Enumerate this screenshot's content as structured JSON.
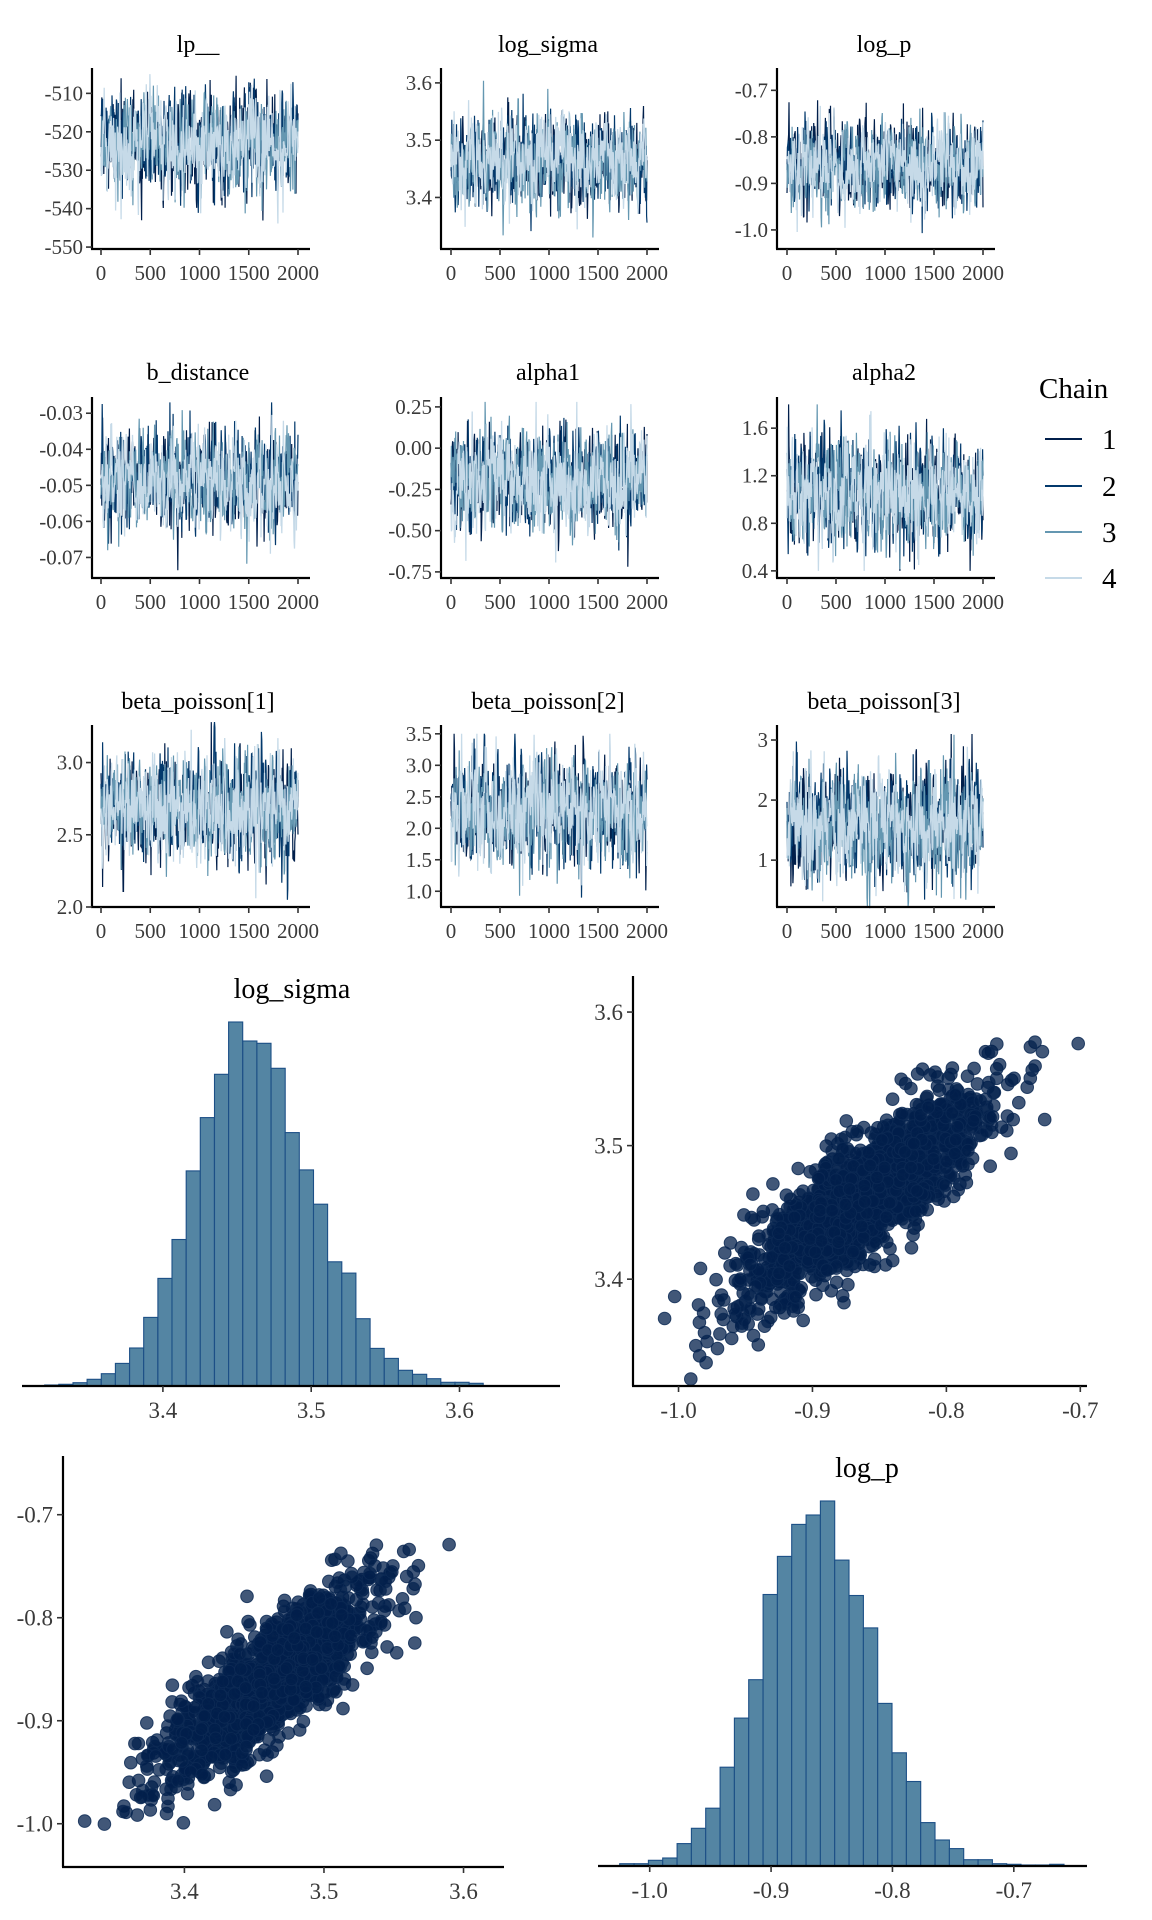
{
  "colors": {
    "chain_1": "#011f4b",
    "chain_2": "#03396c",
    "chain_3": "#6497b1",
    "chain_4": "#c6dae8",
    "hist_fill": "#5485a3",
    "hist_edge": "#1c4f86",
    "point_fill": "#011f4b",
    "point_edge": "#0d2a55"
  },
  "legend": {
    "title": "Chain",
    "items": [
      {
        "label": "1",
        "color_key": "chain_1"
      },
      {
        "label": "2",
        "color_key": "chain_2"
      },
      {
        "label": "3",
        "color_key": "chain_3"
      },
      {
        "label": "4",
        "color_key": "chain_4"
      }
    ]
  },
  "chart_data": [
    {
      "type": "line",
      "kind": "trace",
      "title": "lp__",
      "iterations": 2000,
      "chains": 4,
      "x_ticks": [
        "0",
        "500",
        "1000",
        "1500",
        "2000"
      ],
      "y_ticks": [
        "-510",
        "-520",
        "-530",
        "-540",
        "-550"
      ],
      "ylim": [
        -550.5,
        -503.4
      ],
      "summary": {
        "mean": -522.5,
        "sd": 6.3,
        "min": -549,
        "max": -505
      }
    },
    {
      "type": "line",
      "kind": "trace",
      "title": "log_sigma",
      "iterations": 2000,
      "chains": 4,
      "x_ticks": [
        "0",
        "500",
        "1000",
        "1500",
        "2000"
      ],
      "y_ticks": [
        "3.6",
        "3.5",
        "3.4"
      ],
      "ylim": [
        3.31,
        3.626
      ],
      "summary": {
        "mean": 3.462,
        "sd": 0.039,
        "min": 3.33,
        "max": 3.615
      }
    },
    {
      "type": "line",
      "kind": "trace",
      "title": "log_p",
      "iterations": 2000,
      "chains": 4,
      "x_ticks": [
        "0",
        "500",
        "1000",
        "1500",
        "2000"
      ],
      "y_ticks": [
        "-0.7",
        "-0.8",
        "-0.9",
        "-1.0"
      ],
      "ylim": [
        -1.041,
        -0.652
      ],
      "summary": {
        "mean": -0.862,
        "sd": 0.046,
        "min": -1.025,
        "max": -0.665
      }
    },
    {
      "type": "line",
      "kind": "trace",
      "title": "b_distance",
      "iterations": 2000,
      "chains": 4,
      "x_ticks": [
        "0",
        "500",
        "1000",
        "1500",
        "2000"
      ],
      "y_ticks": [
        "-0.03",
        "-0.04",
        "-0.05",
        "-0.06",
        "-0.07"
      ],
      "ylim": [
        -0.0757,
        -0.0255
      ],
      "summary": {
        "mean": -0.0485,
        "sd": 0.0068,
        "min": -0.074,
        "max": -0.027
      }
    },
    {
      "type": "line",
      "kind": "trace",
      "title": "alpha1",
      "iterations": 2000,
      "chains": 4,
      "x_ticks": [
        "0",
        "500",
        "1000",
        "1500",
        "2000"
      ],
      "y_ticks": [
        "0.25",
        "0.00",
        "-0.25",
        "-0.50",
        "-0.75"
      ],
      "ylim": [
        -0.787,
        0.31
      ],
      "summary": {
        "mean": -0.19,
        "sd": 0.155,
        "min": -0.74,
        "max": 0.28
      }
    },
    {
      "type": "line",
      "kind": "trace",
      "title": "alpha2",
      "iterations": 2000,
      "chains": 4,
      "x_ticks": [
        "0",
        "500",
        "1000",
        "1500",
        "2000"
      ],
      "y_ticks": [
        "1.6",
        "1.2",
        "0.8",
        "0.4"
      ],
      "ylim": [
        0.34,
        1.862
      ],
      "summary": {
        "mean": 1.06,
        "sd": 0.22,
        "min": 0.4,
        "max": 1.8
      }
    },
    {
      "type": "line",
      "kind": "trace",
      "title": "beta_poisson[1]",
      "iterations": 2000,
      "chains": 4,
      "x_ticks": [
        "0",
        "500",
        "1000",
        "1500",
        "2000"
      ],
      "y_ticks": [
        "3.0",
        "2.5",
        "2.0"
      ],
      "ylim": [
        2.0,
        3.26
      ],
      "summary": {
        "mean": 2.69,
        "sd": 0.18,
        "min": 2.05,
        "max": 3.28
      }
    },
    {
      "type": "line",
      "kind": "trace",
      "title": "beta_poisson[2]",
      "iterations": 2000,
      "chains": 4,
      "x_ticks": [
        "0",
        "500",
        "1000",
        "1500",
        "2000"
      ],
      "y_ticks": [
        "3.5",
        "3.0",
        "2.5",
        "2.0",
        "1.5",
        "1.0"
      ],
      "ylim": [
        0.75,
        3.64
      ],
      "summary": {
        "mean": 2.25,
        "sd": 0.42,
        "min": 0.9,
        "max": 3.5
      }
    },
    {
      "type": "line",
      "kind": "trace",
      "title": "beta_poisson[3]",
      "iterations": 2000,
      "chains": 4,
      "x_ticks": [
        "0",
        "500",
        "1000",
        "1500",
        "2000"
      ],
      "y_ticks": [
        "3",
        "2",
        "1"
      ],
      "ylim": [
        0.22,
        3.25
      ],
      "summary": {
        "mean": 1.62,
        "sd": 0.46,
        "min": 0.2,
        "max": 3.1
      }
    },
    {
      "type": "bar",
      "kind": "histogram",
      "title": "log_sigma",
      "x_ticks": [
        "3.4",
        "3.5",
        "3.6"
      ],
      "xlim": [
        3.305,
        3.63
      ],
      "bin_start": 3.3203,
      "bin_width": 0.00954,
      "counts": [
        3,
        5,
        10,
        20,
        37,
        68,
        114,
        206,
        323,
        440,
        646,
        806,
        936,
        1093,
        1036,
        1029,
        954,
        761,
        649,
        546,
        373,
        339,
        202,
        113,
        83,
        47,
        35,
        22,
        11,
        11,
        8
      ]
    },
    {
      "type": "scatter",
      "kind": "pairs",
      "xlabel": "log_p",
      "ylabel": "log_sigma",
      "x_ticks": [
        "-1.0",
        "-0.9",
        "-0.8",
        "-0.7"
      ],
      "y_ticks": [
        "3.6",
        "3.5",
        "3.4"
      ],
      "xlim": [
        -1.034,
        -0.695
      ],
      "ylim": [
        3.32,
        3.627
      ],
      "x_summary": {
        "mean": -0.862,
        "sd": 0.046
      },
      "y_summary": {
        "mean": 3.462,
        "sd": 0.039
      },
      "correlation": 0.82,
      "n_points": 1600
    },
    {
      "type": "scatter",
      "kind": "pairs",
      "xlabel": "log_sigma",
      "ylabel": "log_p",
      "x_ticks": [
        "3.4",
        "3.5",
        "3.6"
      ],
      "y_ticks": [
        "-0.7",
        "-0.8",
        "-0.9",
        "-1.0"
      ],
      "xlim": [
        3.313,
        3.629
      ],
      "ylim": [
        -1.042,
        -0.643
      ],
      "x_summary": {
        "mean": 3.462,
        "sd": 0.039
      },
      "y_summary": {
        "mean": -0.862,
        "sd": 0.046
      },
      "correlation": 0.82,
      "n_points": 1600
    },
    {
      "type": "bar",
      "kind": "histogram",
      "title": "log_p",
      "x_ticks": [
        "-1.0",
        "-0.9",
        "-0.8",
        "-0.7"
      ],
      "xlim": [
        -1.0426,
        -0.6397
      ],
      "bin_start": -1.0247,
      "bin_width": 0.01181,
      "counts": [
        7,
        7,
        17,
        24,
        67,
        113,
        173,
        296,
        443,
        558,
        813,
        927,
        1023,
        1051,
        1093,
        916,
        810,
        713,
        487,
        339,
        253,
        130,
        78,
        52,
        19,
        19,
        7,
        5,
        3,
        3,
        5
      ]
    }
  ]
}
